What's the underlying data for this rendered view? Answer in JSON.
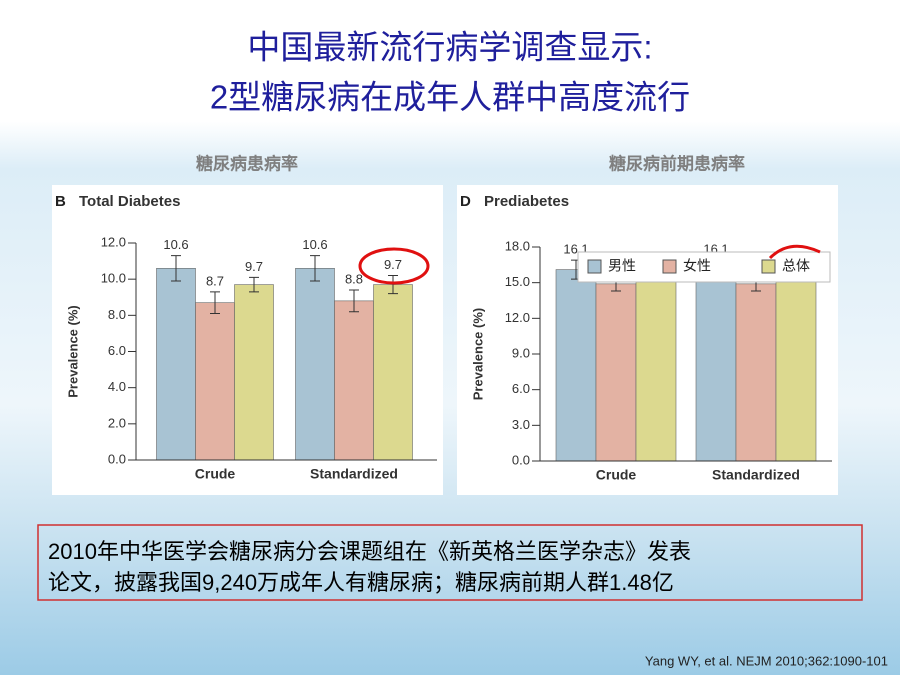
{
  "slide": {
    "title": [
      "中国最新流行病学调查显示:",
      "2型糖尿病在成年人群中高度流行"
    ],
    "note": [
      "2010年中华医学会糖尿病分会课题组在《新英格兰医学杂志》发表",
      "论文，披露我国9,240万成年人有糖尿病；糖尿病前期人群1.48亿"
    ],
    "citation": "Yang WY, et al. NEJM 2010;362:1090-101"
  },
  "chart_data": [
    {
      "type": "bar",
      "heading": "糖尿病患病率",
      "panel": "B",
      "title": "Total Diabetes",
      "ylabel": "Prevalence (%)",
      "categories": [
        "Crude",
        "Standardized"
      ],
      "series": [
        {
          "color": "#a8c3d3",
          "values": [
            10.6,
            10.6
          ],
          "errors": [
            0.7,
            0.7
          ]
        },
        {
          "color": "#e3b2a3",
          "values": [
            8.7,
            8.8
          ],
          "errors": [
            0.6,
            0.6
          ]
        },
        {
          "color": "#dcd98f",
          "values": [
            9.7,
            9.7
          ],
          "errors": [
            0.4,
            0.5
          ]
        }
      ],
      "ylim": [
        0,
        12
      ],
      "yticks": [
        {
          "value": 0,
          "label": "0.0"
        },
        {
          "value": 2,
          "label": "2.0"
        },
        {
          "value": 4,
          "label": "4.0"
        },
        {
          "value": 6,
          "label": "6.0"
        },
        {
          "value": 8,
          "label": "8.0"
        },
        {
          "value": 10,
          "label": "10.0"
        },
        {
          "value": 12,
          "label": "12.0"
        }
      ],
      "legend": false
    },
    {
      "type": "bar",
      "heading": "糖尿病前期患病率",
      "panel": "D",
      "title": "Prediabetes",
      "ylabel": "Prevalence (%)",
      "categories": [
        "Crude",
        "Standardized"
      ],
      "series": [
        {
          "name": "男性",
          "color": "#a8c3d3",
          "values": [
            16.1,
            16.1
          ],
          "errors": [
            0.8,
            0.8
          ]
        },
        {
          "name": "女性",
          "color": "#e3b2a3",
          "values": [
            14.9,
            14.9
          ],
          "errors": [
            0.6,
            0.6
          ]
        },
        {
          "name": "总体",
          "color": "#dcd98f",
          "values": [
            15.5,
            15.5
          ],
          "errors": [
            0.4,
            0.4
          ]
        }
      ],
      "ylim": [
        0,
        18
      ],
      "yticks": [
        {
          "value": 0,
          "label": "0.0"
        },
        {
          "value": 3,
          "label": "3.0"
        },
        {
          "value": 6,
          "label": "6.0"
        },
        {
          "value": 9,
          "label": "9.0"
        },
        {
          "value": 12,
          "label": "12.0"
        },
        {
          "value": 15,
          "label": "15.0"
        },
        {
          "value": 18,
          "label": "18.0"
        }
      ],
      "legend": true
    }
  ]
}
